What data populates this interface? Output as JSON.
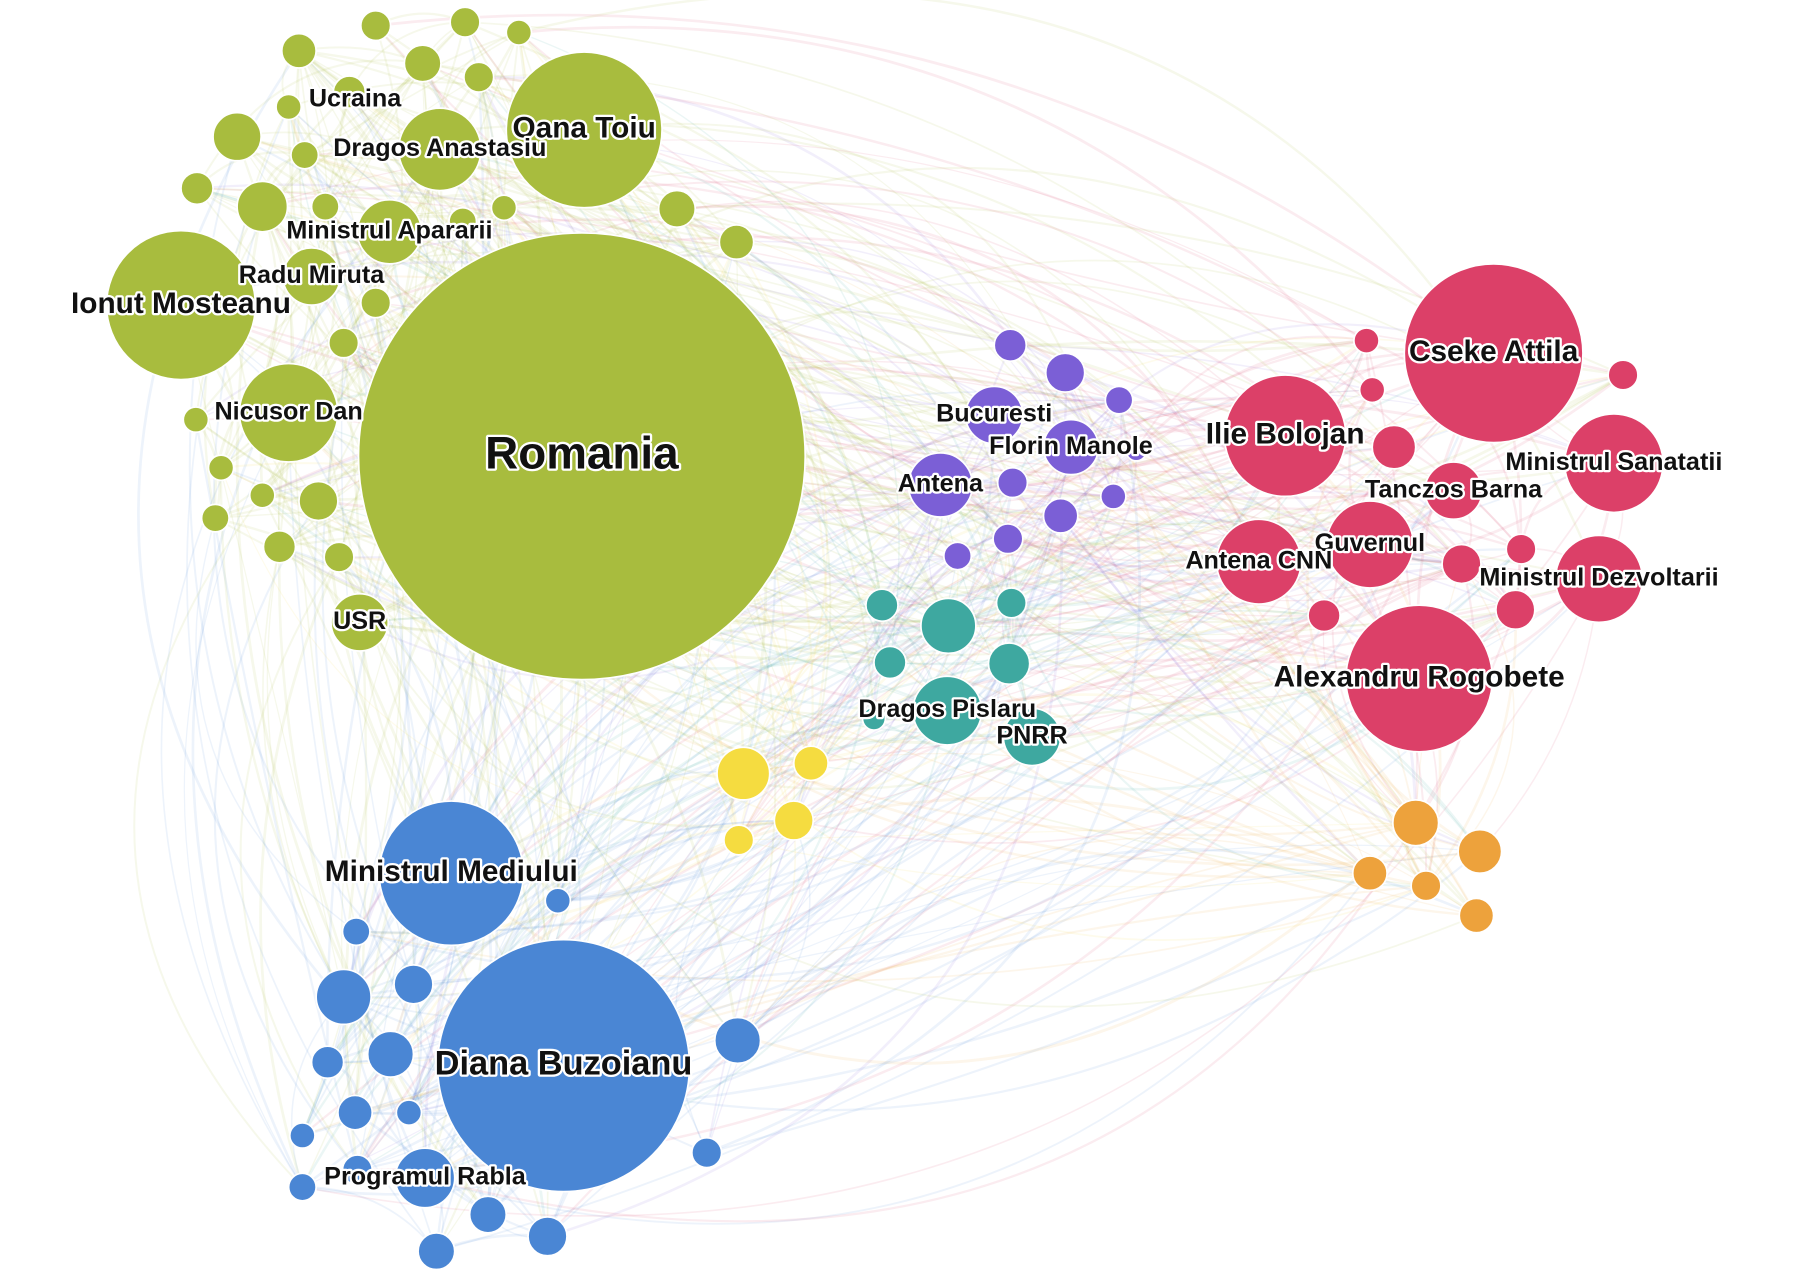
{
  "nodes": [
    {
      "label": "Romania"
    },
    {
      "label": "Oana Toiu"
    },
    {
      "label": "Ionut Mosteanu"
    },
    {
      "label": "Dragos Anastasiu"
    },
    {
      "label": "Ucraina"
    },
    {
      "label": "Ministrul Apararii"
    },
    {
      "label": "Radu Miruta"
    },
    {
      "label": "Nicusor Dan"
    },
    {
      "label": "USR"
    },
    {
      "label": "Bucuresti"
    },
    {
      "label": "Florin Manole"
    },
    {
      "label": "Antena"
    },
    {
      "label": "Dragos Pislaru"
    },
    {
      "label": "PNRR"
    },
    {
      "label": "Cseke Attila"
    },
    {
      "label": "Ilie Bolojan"
    },
    {
      "label": "Ministrul Sanatatii"
    },
    {
      "label": "Tanczos Barna"
    },
    {
      "label": "Guvernul"
    },
    {
      "label": "Antena CNN"
    },
    {
      "label": "Ministrul Dezvoltarii"
    },
    {
      "label": "Alexandru Rogobete"
    },
    {
      "label": "Ministrul Mediului"
    },
    {
      "label": "Diana Buzoianu"
    },
    {
      "label": "Programul Rabla"
    }
  ]
}
